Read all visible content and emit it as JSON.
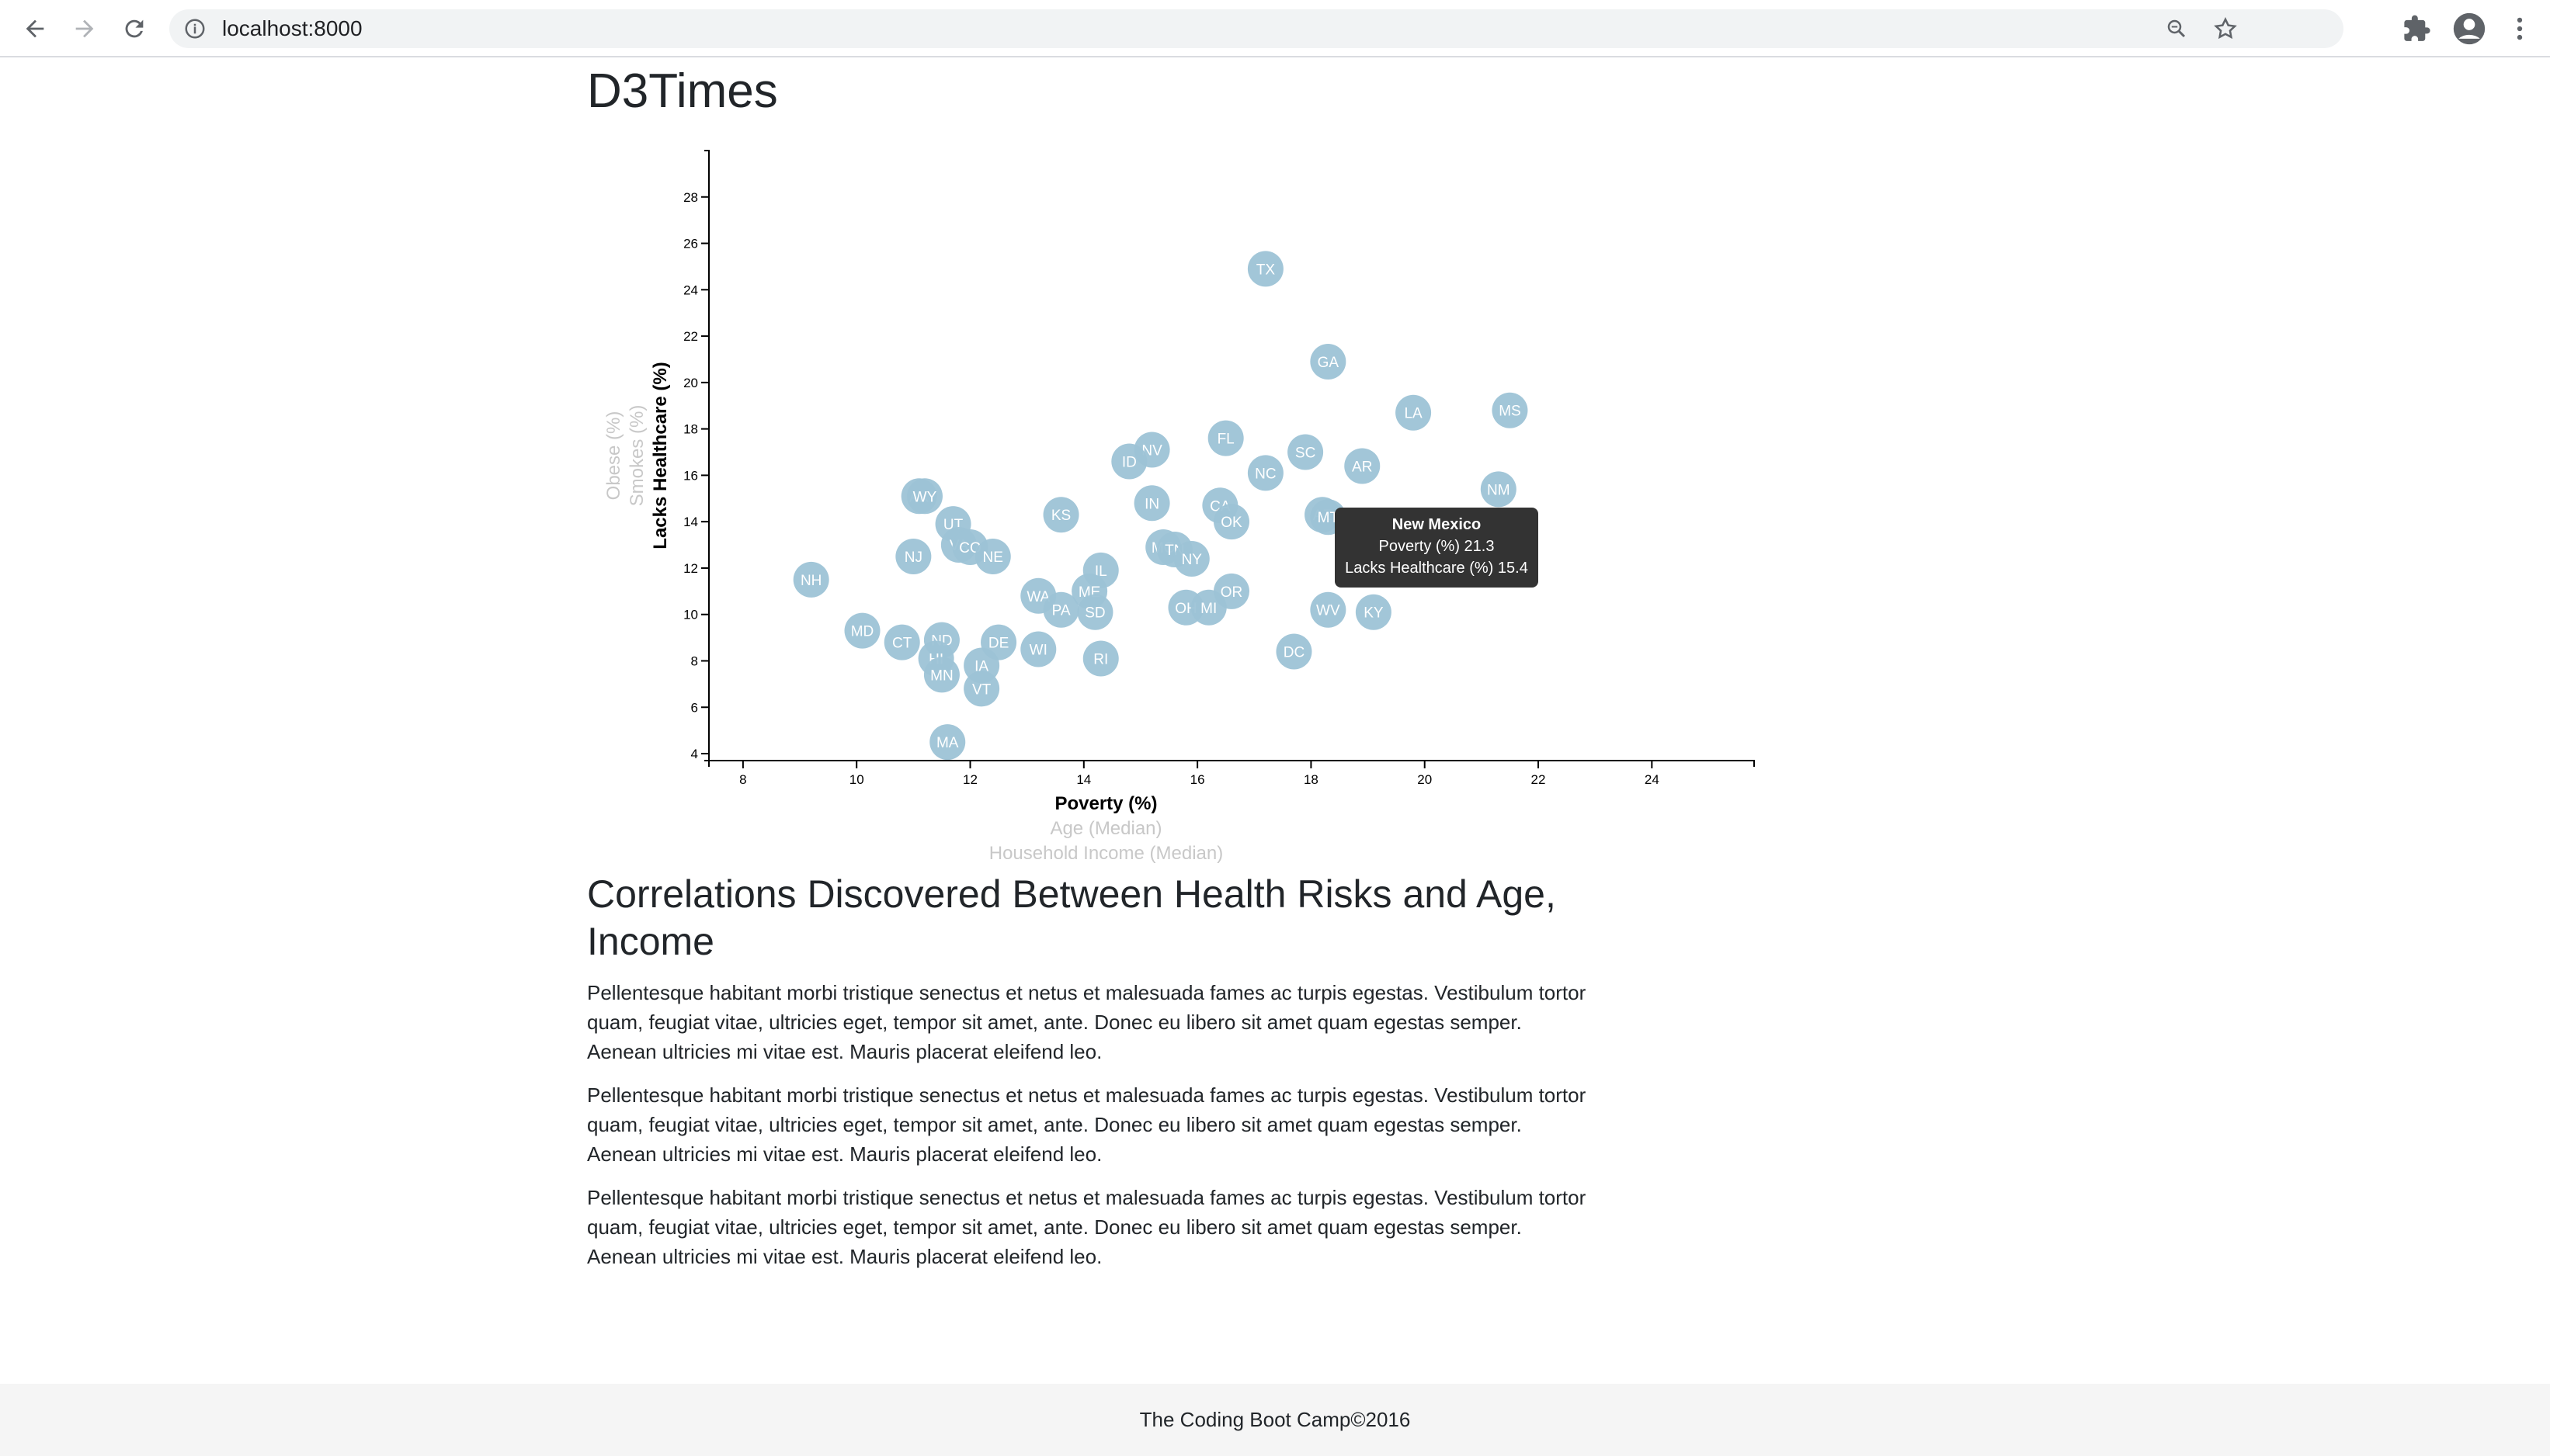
{
  "browser": {
    "url": "localhost:8000",
    "icons": [
      "back-arrow-icon",
      "forward-arrow-icon",
      "reload-icon",
      "info-icon",
      "zoom-icon",
      "star-icon",
      "puzzle-icon",
      "account-icon",
      "kebab-menu-icon"
    ]
  },
  "page": {
    "title": "D3Times"
  },
  "colors": {
    "circle_fill": "#9dc3d6",
    "circle_text": "#ffffff",
    "active_axis_label": "#000000",
    "inactive_axis_label": "#c8c8c8",
    "tooltip_bg": "#333333",
    "footer_bg": "#f5f5f5"
  },
  "chart_data": {
    "type": "scatter",
    "x_labels": [
      "Poverty (%)",
      "Age (Median)",
      "Household Income (Median)"
    ],
    "y_labels": [
      "Lacks Healthcare (%)",
      "Smokes (%)",
      "Obese (%)"
    ],
    "active_x": "Poverty (%)",
    "active_y": "Lacks Healthcare (%)",
    "xlim": [
      7.4,
      25.8
    ],
    "ylim": [
      3.7,
      30.0
    ],
    "x_ticks": [
      8,
      10,
      12,
      14,
      16,
      18,
      20,
      22,
      24
    ],
    "y_ticks": [
      4,
      6,
      8,
      10,
      12,
      14,
      16,
      18,
      20,
      22,
      24,
      26,
      28
    ],
    "points": [
      {
        "state": "TX",
        "x": 17.2,
        "y": 24.9
      },
      {
        "state": "GA",
        "x": 18.3,
        "y": 20.9
      },
      {
        "state": "LA",
        "x": 19.8,
        "y": 18.7
      },
      {
        "state": "MS",
        "x": 21.5,
        "y": 18.8
      },
      {
        "state": "FL",
        "x": 16.5,
        "y": 17.6
      },
      {
        "state": "NV",
        "x": 15.2,
        "y": 17.1
      },
      {
        "state": "SC",
        "x": 17.9,
        "y": 17.0
      },
      {
        "state": "ID",
        "x": 14.8,
        "y": 16.6
      },
      {
        "state": "AR",
        "x": 18.9,
        "y": 16.4
      },
      {
        "state": "NC",
        "x": 17.2,
        "y": 16.1
      },
      {
        "state": "NM",
        "x": 21.3,
        "y": 15.4
      },
      {
        "state": "AK",
        "x": 11.1,
        "y": 15.1
      },
      {
        "state": "WY",
        "x": 11.2,
        "y": 15.1
      },
      {
        "state": "IN",
        "x": 15.2,
        "y": 14.8
      },
      {
        "state": "CA",
        "x": 16.4,
        "y": 14.7
      },
      {
        "state": "AZ",
        "x": 18.2,
        "y": 14.3
      },
      {
        "state": "MT",
        "x": 18.3,
        "y": 14.2
      },
      {
        "state": "KS",
        "x": 13.6,
        "y": 14.3
      },
      {
        "state": "OK",
        "x": 16.6,
        "y": 14.0
      },
      {
        "state": "UT",
        "x": 11.7,
        "y": 13.9
      },
      {
        "state": "VA",
        "x": 11.8,
        "y": 13.0
      },
      {
        "state": "CO",
        "x": 12.0,
        "y": 12.9
      },
      {
        "state": "NJ",
        "x": 11.0,
        "y": 12.5
      },
      {
        "state": "NE",
        "x": 12.4,
        "y": 12.5
      },
      {
        "state": "MO",
        "x": 15.4,
        "y": 12.9
      },
      {
        "state": "TN",
        "x": 15.6,
        "y": 12.8
      },
      {
        "state": "NY",
        "x": 15.9,
        "y": 12.4
      },
      {
        "state": "IL",
        "x": 14.3,
        "y": 11.9
      },
      {
        "state": "NH",
        "x": 9.2,
        "y": 11.5
      },
      {
        "state": "ME",
        "x": 14.1,
        "y": 11.0
      },
      {
        "state": "OR",
        "x": 16.6,
        "y": 11.0
      },
      {
        "state": "WA",
        "x": 13.2,
        "y": 10.8
      },
      {
        "state": "PA",
        "x": 13.6,
        "y": 10.2
      },
      {
        "state": "SD",
        "x": 14.2,
        "y": 10.1
      },
      {
        "state": "OH",
        "x": 15.8,
        "y": 10.3
      },
      {
        "state": "MI",
        "x": 16.2,
        "y": 10.3
      },
      {
        "state": "WV",
        "x": 18.3,
        "y": 10.2
      },
      {
        "state": "KY",
        "x": 19.1,
        "y": 10.1
      },
      {
        "state": "MD",
        "x": 10.1,
        "y": 9.3
      },
      {
        "state": "CT",
        "x": 10.8,
        "y": 8.8
      },
      {
        "state": "ND",
        "x": 11.5,
        "y": 8.9
      },
      {
        "state": "DE",
        "x": 12.5,
        "y": 8.8
      },
      {
        "state": "WI",
        "x": 13.2,
        "y": 8.5
      },
      {
        "state": "DC",
        "x": 17.7,
        "y": 8.4
      },
      {
        "state": "HI",
        "x": 11.4,
        "y": 8.1
      },
      {
        "state": "RI",
        "x": 14.3,
        "y": 8.1
      },
      {
        "state": "IA",
        "x": 12.2,
        "y": 7.8
      },
      {
        "state": "MN",
        "x": 11.5,
        "y": 7.4
      },
      {
        "state": "VT",
        "x": 12.2,
        "y": 6.8
      },
      {
        "state": "MA",
        "x": 11.6,
        "y": 4.5
      }
    ]
  },
  "tooltip": {
    "title": "New Mexico",
    "line1": "Poverty (%) 21.3",
    "line2": "Lacks Healthcare (%) 15.4"
  },
  "article": {
    "heading": "Correlations Discovered Between Health Risks and Age, Income",
    "paragraphs": [
      "Pellentesque habitant morbi tristique senectus et netus et malesuada fames ac turpis egestas. Vestibulum tortor quam, feugiat vitae, ultricies eget, tempor sit amet, ante. Donec eu libero sit amet quam egestas semper. Aenean ultricies mi vitae est. Mauris placerat eleifend leo.",
      "Pellentesque habitant morbi tristique senectus et netus et malesuada fames ac turpis egestas. Vestibulum tortor quam, feugiat vitae, ultricies eget, tempor sit amet, ante. Donec eu libero sit amet quam egestas semper. Aenean ultricies mi vitae est. Mauris placerat eleifend leo.",
      "Pellentesque habitant morbi tristique senectus et netus et malesuada fames ac turpis egestas. Vestibulum tortor quam, feugiat vitae, ultricies eget, tempor sit amet, ante. Donec eu libero sit amet quam egestas semper. Aenean ultricies mi vitae est. Mauris placerat eleifend leo."
    ]
  },
  "footer": {
    "text": "The Coding Boot Camp©2016"
  }
}
